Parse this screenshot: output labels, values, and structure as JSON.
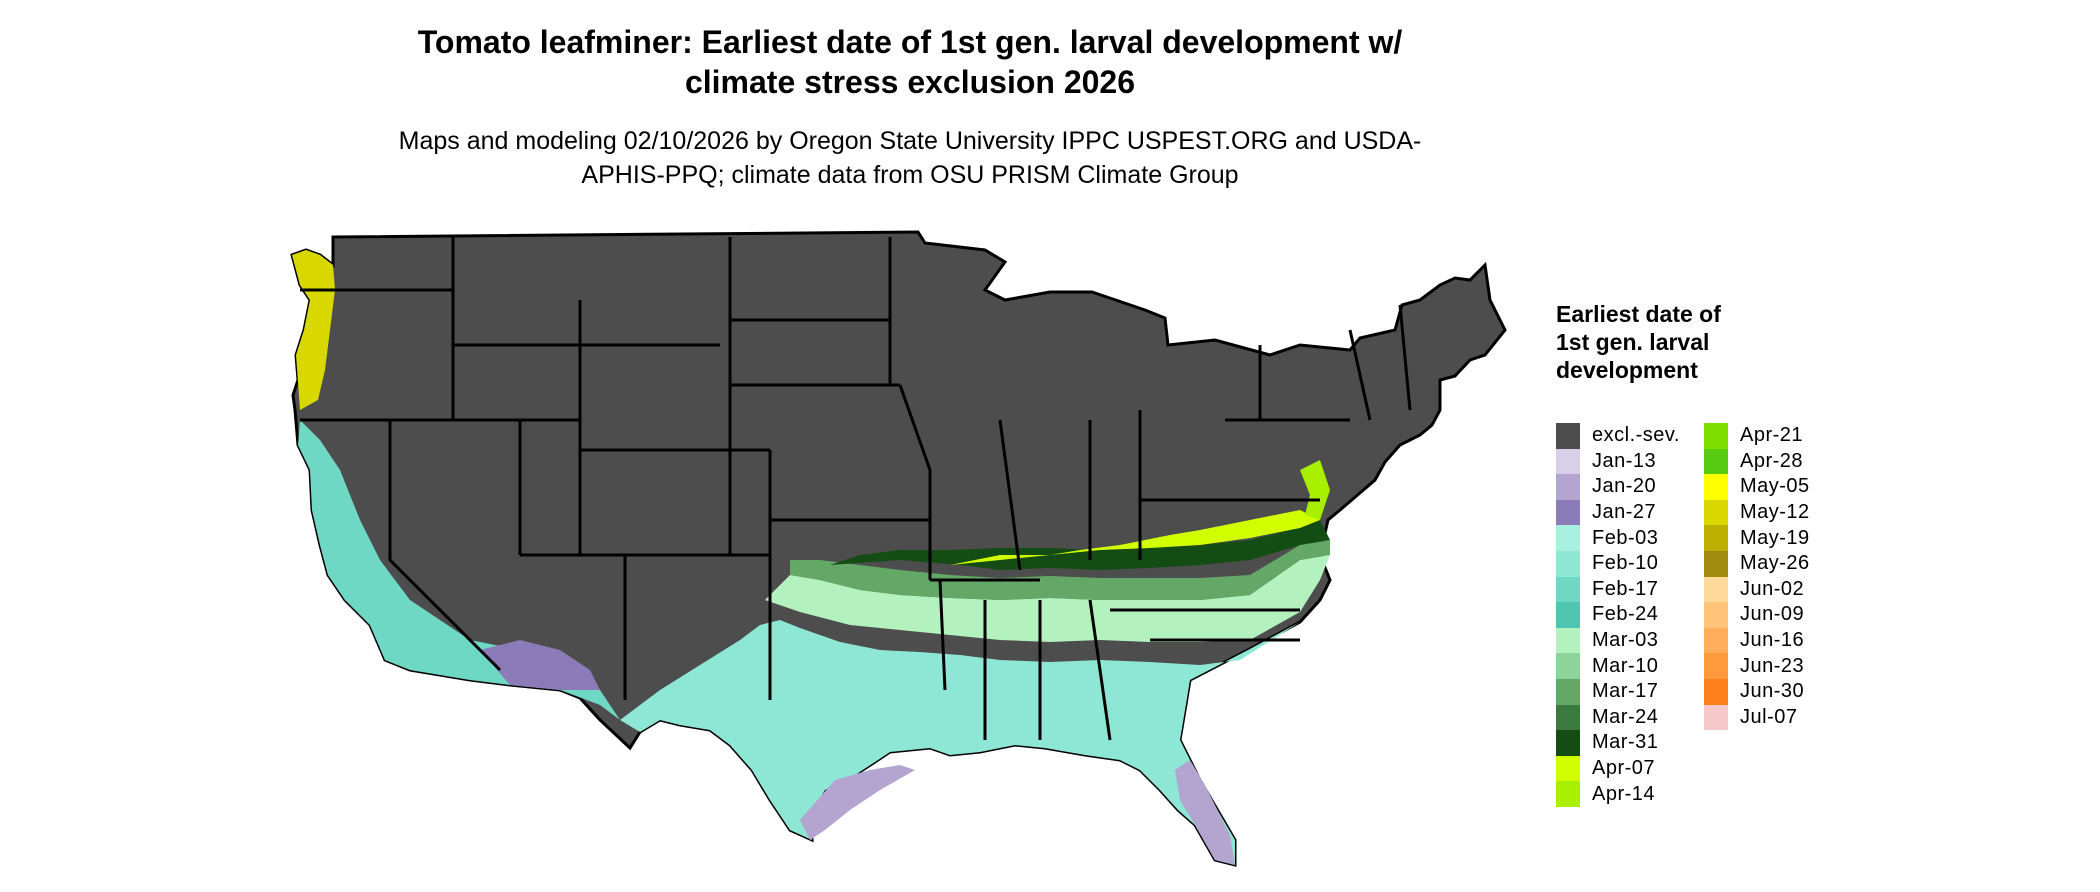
{
  "title": "Tomato leafminer: Earliest date of 1st gen. larval development w/ climate stress exclusion 2026",
  "subtitle": "Maps and modeling 02/10/2026 by Oregon State University IPPC USPEST.ORG and USDA-APHIS-PPQ; climate data from OSU PRISM Climate Group",
  "legend": {
    "title": "Earliest date of 1st gen. larval development",
    "items": [
      {
        "label": "excl.-sev.",
        "color": "#4d4d4d"
      },
      {
        "label": "Jan-13",
        "color": "#d9cfe8"
      },
      {
        "label": "Jan-20",
        "color": "#b3a4d0"
      },
      {
        "label": "Jan-27",
        "color": "#8b7bb8"
      },
      {
        "label": "Feb-03",
        "color": "#a8f0e0"
      },
      {
        "label": "Feb-10",
        "color": "#8ee6d4"
      },
      {
        "label": "Feb-17",
        "color": "#6ed8c4"
      },
      {
        "label": "Feb-24",
        "color": "#4fc7b0"
      },
      {
        "label": "Mar-03",
        "color": "#b3f2bf"
      },
      {
        "label": "Mar-10",
        "color": "#8ed39a"
      },
      {
        "label": "Mar-17",
        "color": "#64a868"
      },
      {
        "label": "Mar-24",
        "color": "#3a7a3e"
      },
      {
        "label": "Mar-31",
        "color": "#144d14"
      },
      {
        "label": "Apr-07",
        "color": "#d2ff00"
      },
      {
        "label": "Apr-14",
        "color": "#a8f000"
      },
      {
        "label": "Apr-21",
        "color": "#7fdf00"
      },
      {
        "label": "Apr-28",
        "color": "#55cc11"
      },
      {
        "label": "May-05",
        "color": "#ffff00"
      },
      {
        "label": "May-12",
        "color": "#d8d800"
      },
      {
        "label": "May-19",
        "color": "#bdb000"
      },
      {
        "label": "May-26",
        "color": "#a08a10"
      },
      {
        "label": "Jun-02",
        "color": "#ffd99a"
      },
      {
        "label": "Jun-09",
        "color": "#ffc37a"
      },
      {
        "label": "Jun-16",
        "color": "#ffae5c"
      },
      {
        "label": "Jun-23",
        "color": "#ff9a3c"
      },
      {
        "label": "Jun-30",
        "color": "#ff7f1c"
      },
      {
        "label": "Jul-07",
        "color": "#f6c8c8"
      }
    ]
  },
  "map_colors": {
    "excluded": "#4d4d4d",
    "border": "#000000"
  }
}
